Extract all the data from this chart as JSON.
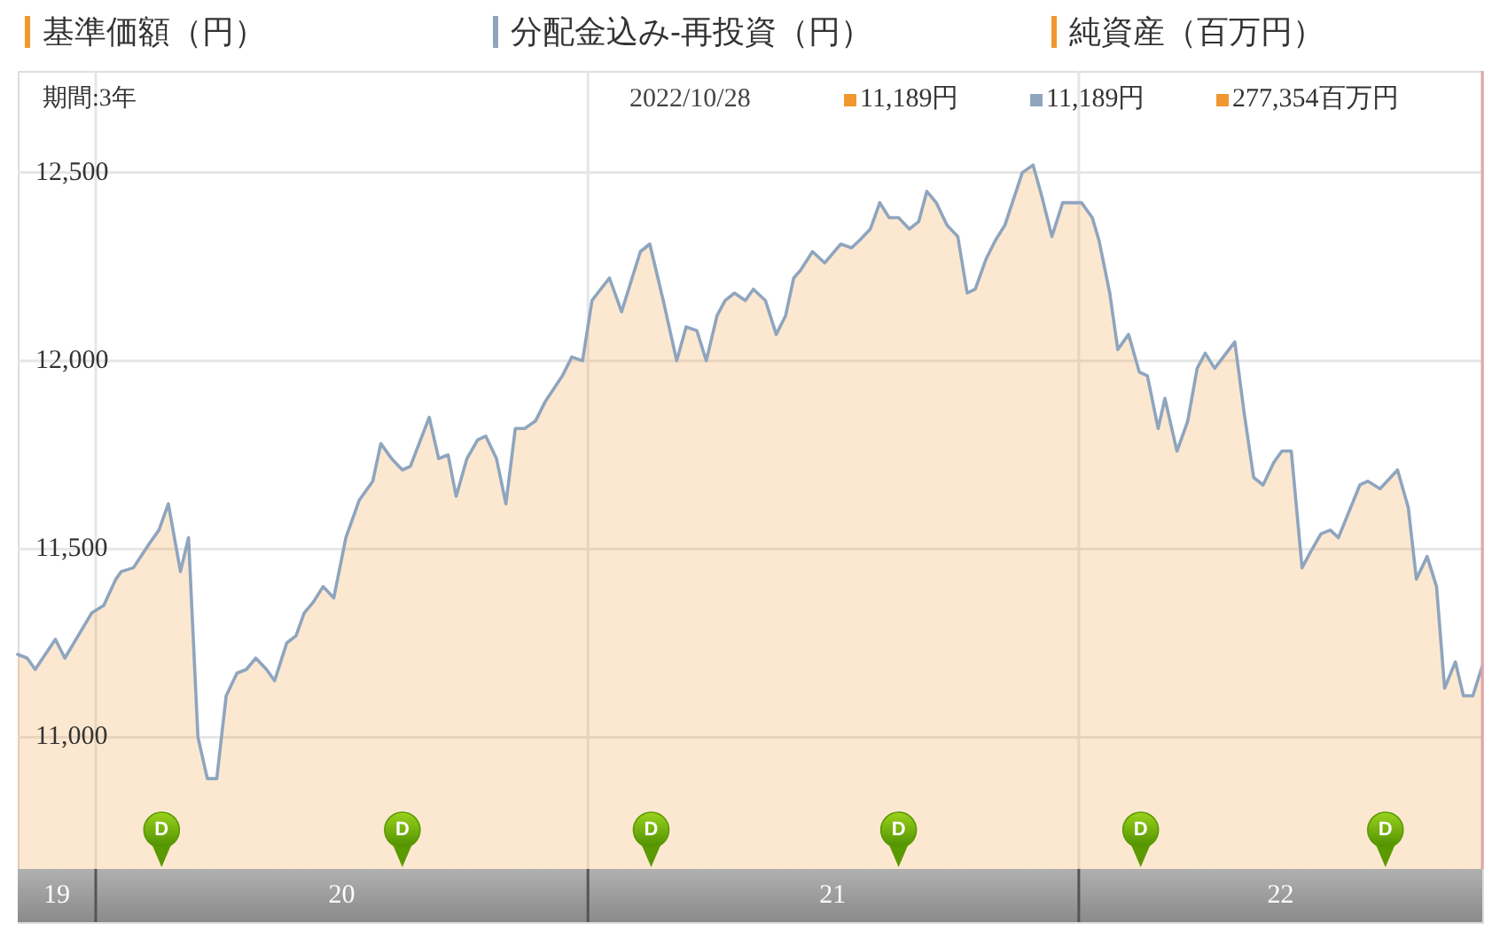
{
  "chart_data": {
    "type": "area",
    "subtitle": "期間:3年",
    "x": [
      "2019-11-04",
      "2019-11-11",
      "2019-11-17",
      "2019-12-02",
      "2019-12-09",
      "2019-12-29",
      "2020-01-07",
      "2020-01-16",
      "2020-01-20",
      "2020-01-29",
      "2020-02-09",
      "2020-02-17",
      "2020-02-24",
      "2020-03-04",
      "2020-03-10",
      "2020-03-17",
      "2020-03-24",
      "2020-03-31",
      "2020-04-07",
      "2020-04-15",
      "2020-04-22",
      "2020-04-29",
      "2020-05-07",
      "2020-05-13",
      "2020-05-22",
      "2020-05-29",
      "2020-06-04",
      "2020-06-11",
      "2020-06-18",
      "2020-06-26",
      "2020-07-05",
      "2020-07-15",
      "2020-07-25",
      "2020-07-31",
      "2020-08-08",
      "2020-08-16",
      "2020-08-22",
      "2020-09-05",
      "2020-09-12",
      "2020-09-19",
      "2020-09-25",
      "2020-10-03",
      "2020-10-11",
      "2020-10-17",
      "2020-10-25",
      "2020-11-01",
      "2020-11-08",
      "2020-11-15",
      "2020-11-23",
      "2020-11-30",
      "2020-12-13",
      "2020-12-20",
      "2020-12-28",
      "2021-01-04",
      "2021-01-17",
      "2021-01-26",
      "2021-02-09",
      "2021-02-16",
      "2021-02-26",
      "2021-03-08",
      "2021-03-15",
      "2021-03-23",
      "2021-03-30",
      "2021-04-07",
      "2021-04-13",
      "2021-04-20",
      "2021-04-28",
      "2021-05-04",
      "2021-05-13",
      "2021-05-21",
      "2021-05-28",
      "2021-06-03",
      "2021-06-08",
      "2021-06-17",
      "2021-06-26",
      "2021-07-08",
      "2021-07-16",
      "2021-07-22",
      "2021-07-30",
      "2021-08-06",
      "2021-08-13",
      "2021-08-20",
      "2021-08-28",
      "2021-09-04",
      "2021-09-10",
      "2021-09-17",
      "2021-09-25",
      "2021-10-03",
      "2021-10-10",
      "2021-10-16",
      "2021-10-24",
      "2021-10-31",
      "2021-11-07",
      "2021-11-20",
      "2021-11-28",
      "2021-12-05",
      "2021-12-12",
      "2021-12-20",
      "2021-12-25",
      "2022-01-03",
      "2022-01-11",
      "2022-01-16",
      "2022-01-24",
      "2022-01-30",
      "2022-02-07",
      "2022-02-15",
      "2022-02-21",
      "2022-03-01",
      "2022-03-06",
      "2022-03-15",
      "2022-03-23",
      "2022-03-30",
      "2022-04-05",
      "2022-04-12",
      "2022-04-27",
      "2022-05-04",
      "2022-05-11",
      "2022-05-18",
      "2022-05-26",
      "2022-06-01",
      "2022-06-08",
      "2022-06-16",
      "2022-06-22",
      "2022-06-30",
      "2022-07-07",
      "2022-07-13",
      "2022-07-29",
      "2022-08-04",
      "2022-08-13",
      "2022-08-26",
      "2022-09-03",
      "2022-09-09",
      "2022-09-17",
      "2022-09-24",
      "2022-09-30",
      "2022-10-08",
      "2022-10-14",
      "2022-10-21",
      "2022-10-28"
    ],
    "series": [
      {
        "name": "基準価額（円）",
        "color": "#f0982f",
        "values": [
          11220,
          11210,
          11180,
          11260,
          11210,
          11330,
          11350,
          11420,
          11440,
          11450,
          11510,
          11550,
          11620,
          11440,
          11530,
          11000,
          10890,
          10890,
          11110,
          11170,
          11180,
          11210,
          11180,
          11150,
          11250,
          11270,
          11330,
          11360,
          11400,
          11370,
          11530,
          11630,
          11680,
          11780,
          11740,
          11710,
          11720,
          11850,
          11740,
          11750,
          11640,
          11740,
          11790,
          11800,
          11740,
          11620,
          11820,
          11820,
          11840,
          11890,
          11960,
          12010,
          12000,
          12160,
          12220,
          12130,
          12290,
          12310,
          12160,
          12000,
          12090,
          12080,
          12000,
          12120,
          12160,
          12180,
          12160,
          12190,
          12160,
          12070,
          12120,
          12220,
          12240,
          12290,
          12260,
          12310,
          12300,
          12320,
          12350,
          12420,
          12380,
          12380,
          12350,
          12370,
          12450,
          12420,
          12360,
          12330,
          12180,
          12190,
          12270,
          12320,
          12360,
          12500,
          12520,
          12430,
          12330,
          12420,
          12420,
          12420,
          12380,
          12320,
          12180,
          12030,
          12070,
          11970,
          11960,
          11820,
          11900,
          11760,
          11840,
          11980,
          12020,
          11980,
          12050,
          11860,
          11690,
          11670,
          11730,
          11760,
          11760,
          11450,
          11490,
          11540,
          11550,
          11530,
          11670,
          11680,
          11660,
          11710,
          11610,
          11420,
          11480,
          11400,
          11130,
          11200,
          11110,
          11110,
          11189
        ]
      },
      {
        "name": "分配金込み-再投資（円）",
        "type": "line",
        "color": "#8ea5be",
        "values": [
          11220,
          11210,
          11180,
          11260,
          11210,
          11330,
          11350,
          11420,
          11440,
          11450,
          11510,
          11550,
          11620,
          11440,
          11530,
          11000,
          10890,
          10890,
          11110,
          11170,
          11180,
          11210,
          11180,
          11150,
          11250,
          11270,
          11330,
          11360,
          11400,
          11370,
          11530,
          11630,
          11680,
          11780,
          11740,
          11710,
          11720,
          11850,
          11740,
          11750,
          11640,
          11740,
          11790,
          11800,
          11740,
          11620,
          11820,
          11820,
          11840,
          11890,
          11960,
          12010,
          12000,
          12160,
          12220,
          12130,
          12290,
          12310,
          12160,
          12000,
          12090,
          12080,
          12000,
          12120,
          12160,
          12180,
          12160,
          12190,
          12160,
          12070,
          12120,
          12220,
          12240,
          12290,
          12260,
          12310,
          12300,
          12320,
          12350,
          12420,
          12380,
          12380,
          12350,
          12370,
          12450,
          12420,
          12360,
          12330,
          12180,
          12190,
          12270,
          12320,
          12360,
          12500,
          12520,
          12430,
          12330,
          12420,
          12420,
          12420,
          12380,
          12320,
          12180,
          12030,
          12070,
          11970,
          11960,
          11820,
          11900,
          11760,
          11840,
          11980,
          12020,
          11980,
          12050,
          11860,
          11690,
          11670,
          11730,
          11760,
          11760,
          11450,
          11490,
          11540,
          11550,
          11530,
          11670,
          11680,
          11660,
          11710,
          11610,
          11420,
          11480,
          11400,
          11130,
          11200,
          11110,
          11110,
          11189
        ]
      },
      {
        "name": "純資産（百万円）",
        "color": "#f0982f",
        "values": [
          null,
          null,
          null,
          null,
          null,
          null,
          null,
          null,
          null,
          null,
          null,
          null,
          null,
          null,
          null,
          null,
          null,
          null,
          null,
          null,
          null,
          null,
          null,
          null,
          null,
          null,
          null,
          null,
          null,
          null,
          null,
          null,
          null,
          null,
          null,
          null,
          null,
          null,
          null,
          null,
          null,
          null,
          null,
          null,
          null,
          null,
          null,
          null,
          null,
          null,
          null,
          null,
          null,
          null,
          null,
          null,
          null,
          null,
          null,
          null,
          null,
          null,
          null,
          null,
          null,
          null,
          null,
          null,
          null,
          null,
          null,
          null,
          null,
          null,
          null,
          null,
          null,
          null,
          null,
          null,
          null,
          null,
          null,
          null,
          null,
          null,
          null,
          null,
          null,
          null,
          null,
          null,
          null,
          null,
          null,
          null,
          null,
          null,
          null,
          null,
          null,
          null,
          null,
          null,
          null,
          null,
          null,
          null,
          null,
          null,
          null,
          null,
          null,
          null,
          null,
          null,
          null,
          null,
          null,
          null,
          null,
          null,
          null,
          null,
          null,
          null,
          null,
          null,
          null,
          null,
          null,
          null,
          null,
          null,
          null,
          null,
          null,
          null,
          null
        ]
      }
    ],
    "xlim": [
      "2019-11-04",
      "2022-10-28"
    ],
    "xticks": [
      {
        "value": "2019-12-03",
        "label": "19"
      },
      {
        "value": "2020-01-01",
        "label": null
      },
      {
        "value": "2020-07-02",
        "label": "20"
      },
      {
        "value": "2021-01-01",
        "label": null
      },
      {
        "value": "2021-07-02",
        "label": "21"
      },
      {
        "value": "2022-01-01",
        "label": null
      },
      {
        "value": "2022-05-31",
        "label": "22"
      }
    ],
    "ylim": [
      10650,
      12770
    ],
    "yticks": [
      {
        "value": 11000,
        "label": "11,000"
      },
      {
        "value": 11500,
        "label": "11,500"
      },
      {
        "value": 12000,
        "label": "12,000"
      },
      {
        "value": 12500,
        "label": "12,500"
      }
    ],
    "grid": true,
    "legend": "top",
    "ref_lines": [
      {
        "axis": "x",
        "value": "2022-10-28",
        "color": "#e3a5a5"
      }
    ],
    "annotations": [
      "2022/10/28",
      "11,189円",
      "11,189円",
      "277,354百万円",
      {
        "text": "D",
        "x": "2020-02-19"
      },
      {
        "text": "D",
        "x": "2020-08-16"
      },
      {
        "text": "D",
        "x": "2021-02-17"
      },
      {
        "text": "D",
        "x": "2021-08-20"
      },
      {
        "text": "D",
        "x": "2022-02-16"
      },
      {
        "text": "D",
        "x": "2022-08-17"
      }
    ]
  }
}
